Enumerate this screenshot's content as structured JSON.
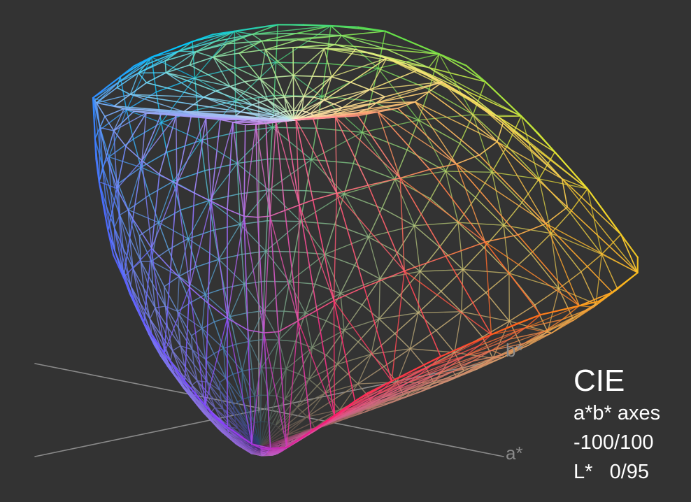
{
  "legend": {
    "title": "CIE",
    "line1": "a*b* axes",
    "line2": "-100/100",
    "line3": "L*   0/95"
  },
  "axes": {
    "b_label": "b*",
    "a_label": "a*",
    "axis_color": "#9a9a9a"
  },
  "colors": {
    "background": "#333333",
    "legend_text": "#ffffff",
    "axis_label_text": "#8a8a8a"
  },
  "gamut": {
    "description_type": "wireframe-mesh",
    "hue_colors": [
      "#00c8ff",
      "#4a6cff",
      "#8a3cff",
      "#ff1a6a",
      "#ff5a1a",
      "#ffb01a",
      "#e8e830",
      "#5ae04a"
    ]
  }
}
